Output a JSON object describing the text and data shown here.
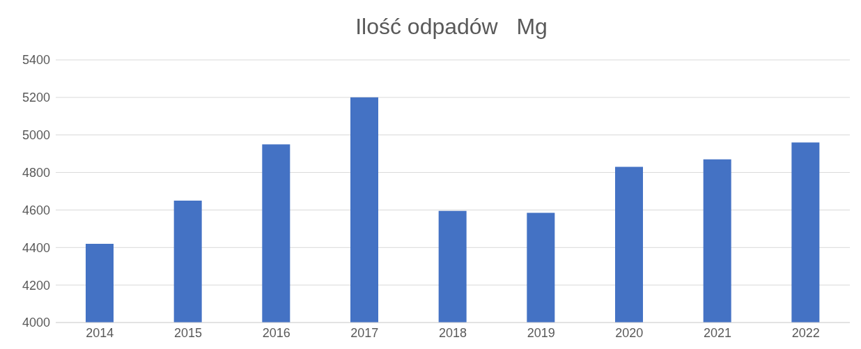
{
  "chart_data": {
    "type": "bar",
    "title": "Ilość odpadów   Mg",
    "categories": [
      "2014",
      "2015",
      "2016",
      "2017",
      "2018",
      "2019",
      "2020",
      "2021",
      "2022"
    ],
    "values": [
      4420,
      4650,
      4950,
      5200,
      4595,
      4585,
      4830,
      4870,
      4960
    ],
    "color": "#4472c4",
    "ylim": [
      4000,
      5400
    ],
    "yticks": [
      4000,
      4200,
      4400,
      4600,
      4800,
      5000,
      5200,
      5400
    ],
    "grid": "y"
  }
}
